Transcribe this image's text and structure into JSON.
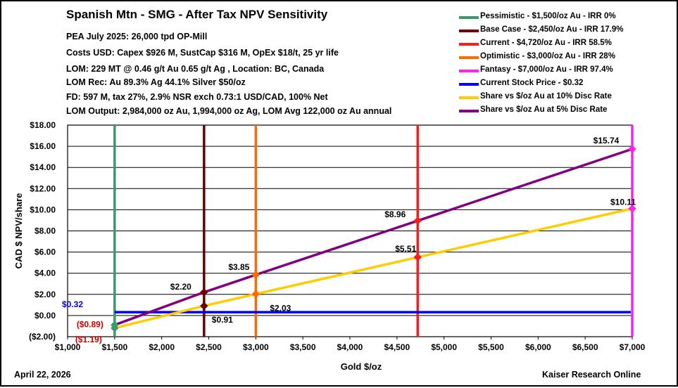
{
  "title": "Spanish Mtn - SMG - After Tax NPV Sensitivity",
  "info_lines": [
    "PEA July 2025: 26,000 tpd OP-Mill",
    "Costs  USD: Capex $926 M, SustCap $316 M, OpEx $18/t, 25 yr life",
    "LOM: 229 MT @ 0.46 g/t Au 0.65 g/t Ag , Location: BC, Canada",
    "LOM Rec: Au 89.3% Ag 44.1%  Silver $50/oz",
    "FD: 597 M, tax 27%,  2.9%  NSR exch 0.73:1 USD/CAD,  100%  Net",
    "LOM Output:  2,984,000  oz Au, 1,994,000  oz Ag, LOM Avg 122,000  oz Au annual"
  ],
  "footer": {
    "date": "April 22, 2026",
    "source": "Kaiser Research Online"
  },
  "legend": [
    {
      "label": "Pessimistic - $1,500/oz Au - IRR 0%",
      "color": "#3a9a6a"
    },
    {
      "label": "Base Case - $2,450/oz Au - IRR 17.9%",
      "color": "#6b0000"
    },
    {
      "label": "Current - $4,720/oz Au - IRR 58.5%",
      "color": "#ff1a1a"
    },
    {
      "label": "Optimistic - $3,000/oz Au - IRR 28%",
      "color": "#ff6a00"
    },
    {
      "label": "Fantasy - $7,000/oz Au - IRR 97.4%",
      "color": "#ff22ee"
    },
    {
      "label": "Current Stock Price - $0.32",
      "color": "#0000ee"
    },
    {
      "label": "Share vs $/oz Au at 10% Disc Rate",
      "color": "#ffcc00"
    },
    {
      "label": "Share vs $/oz Au at 5% Disc Rate",
      "color": "#800080"
    }
  ],
  "chart_data": {
    "type": "line",
    "xlabel": "Gold $/oz",
    "ylabel": "CAD $ NPV/share",
    "xlim": [
      1000,
      7000
    ],
    "ylim": [
      -2,
      18
    ],
    "x_ticks": [
      1000,
      1500,
      2000,
      2500,
      3000,
      3500,
      4000,
      4500,
      5000,
      5500,
      6000,
      6500,
      7000
    ],
    "x_tick_labels": [
      "$1,000",
      "$1,500",
      "$2,000",
      "$2,500",
      "$3,000",
      "$3,500",
      "$4,000",
      "$4,500",
      "$5,000",
      "$5,500",
      "$6,000",
      "$6,500",
      "$7,000"
    ],
    "y_ticks": [
      -2,
      0,
      2,
      4,
      6,
      8,
      10,
      12,
      14,
      16,
      18
    ],
    "y_tick_labels": [
      "($2.00)",
      "$0.00",
      "$2.00",
      "$4.00",
      "$6.00",
      "$8.00",
      "$10.00",
      "$12.00",
      "$14.00",
      "$16.00",
      "$18.00"
    ],
    "grid": "horizontal",
    "legend_position": "top-right",
    "scenario_lines": [
      {
        "name": "Pessimistic",
        "x": 1500,
        "color": "#3a9a6a"
      },
      {
        "name": "Base Case",
        "x": 2450,
        "color": "#6b0000"
      },
      {
        "name": "Optimistic",
        "x": 3000,
        "color": "#ff6a00"
      },
      {
        "name": "Current",
        "x": 4720,
        "color": "#ff1a1a"
      },
      {
        "name": "Fantasy",
        "x": 7000,
        "color": "#ff22ee"
      }
    ],
    "stock_price": {
      "value": 0.32,
      "label": "$0.32",
      "color": "#0000ee"
    },
    "series": [
      {
        "name": "Share vs $/oz Au at 10% Disc Rate",
        "color": "#ffcc00",
        "x": [
          1500,
          2450,
          3000,
          4720,
          7000
        ],
        "y": [
          -1.19,
          0.91,
          2.03,
          5.51,
          10.11
        ],
        "labels": [
          "($1.19)",
          "$0.91",
          "$2.03",
          "$5.51",
          "$10.11"
        ],
        "marker_colors": [
          "#3a9a6a",
          "#6b0000",
          "#ff6a00",
          "#ff1a1a",
          "#ff22ee"
        ]
      },
      {
        "name": "Share vs $/oz Au at 5% Disc Rate",
        "color": "#800080",
        "x": [
          1500,
          2450,
          3000,
          4720,
          7000
        ],
        "y": [
          -0.89,
          2.2,
          3.85,
          8.96,
          15.74
        ],
        "labels": [
          "($0.89)",
          "$2.20",
          "$3.85",
          "$8.96",
          "$15.74"
        ],
        "marker_colors": [
          "#3a9a6a",
          "#6b0000",
          "#ff6a00",
          "#ff1a1a",
          "#ff22ee"
        ]
      }
    ]
  }
}
